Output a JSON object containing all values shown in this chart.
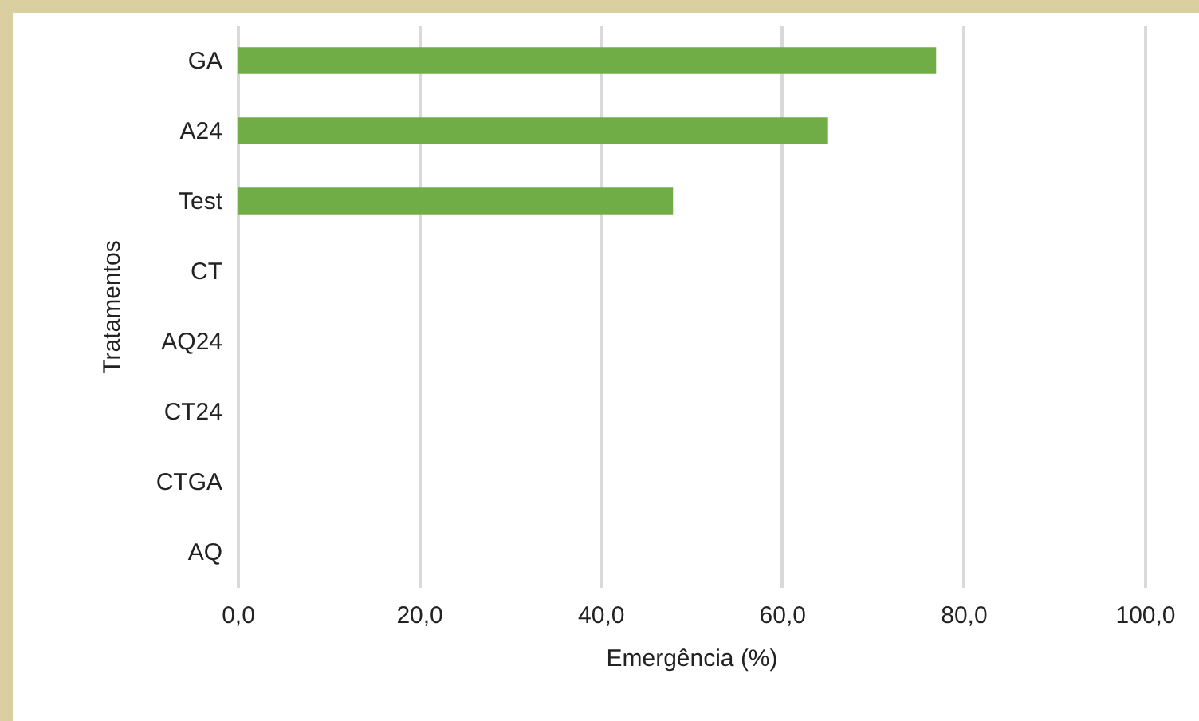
{
  "chart_data": {
    "type": "bar",
    "orientation": "horizontal",
    "xlabel": "Emergência (%)",
    "ylabel": "Tratamentos",
    "categories": [
      "GA",
      "A24",
      "Test",
      "CT",
      "AQ24",
      "CT24",
      "CTGA",
      "AQ"
    ],
    "values": [
      77,
      65,
      48,
      0,
      0,
      0,
      0,
      0
    ],
    "color": "#70ad47",
    "xlim": [
      0,
      100
    ],
    "xticks": [
      {
        "value": 0,
        "label": "0,0"
      },
      {
        "value": 20,
        "label": "20,0"
      },
      {
        "value": 40,
        "label": "40,0"
      },
      {
        "value": 60,
        "label": "60,0"
      },
      {
        "value": 80,
        "label": "80,0"
      },
      {
        "value": 100,
        "label": "100,0"
      }
    ],
    "grid": "x"
  }
}
